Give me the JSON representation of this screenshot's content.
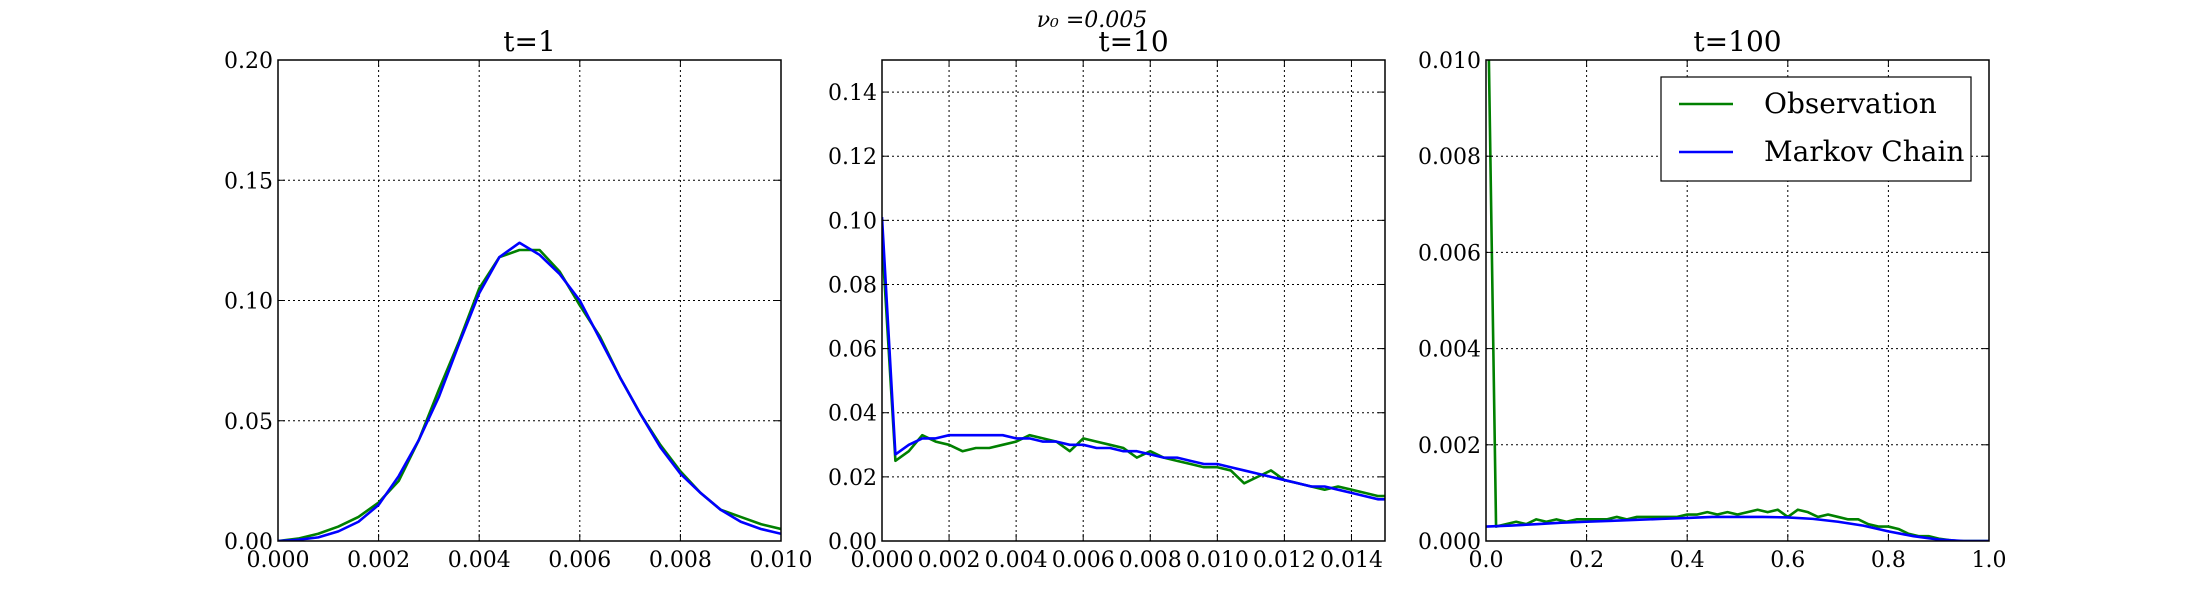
{
  "suptitle": "ν₀ =0.005",
  "legend": {
    "placement": "top-right",
    "entries": [
      {
        "label": "Observation",
        "color": "#008000"
      },
      {
        "label": "Markov Chain",
        "color": "#0000ff"
      }
    ]
  },
  "chart_data": [
    {
      "type": "line",
      "title": "t=1",
      "grid": true,
      "xlim": [
        0,
        0.01
      ],
      "ylim": [
        0,
        0.2
      ],
      "xticks": [
        "0.000",
        "0.002",
        "0.004",
        "0.006",
        "0.008",
        "0.010"
      ],
      "yticks": [
        "0.00",
        "0.05",
        "0.10",
        "0.15",
        "0.20"
      ],
      "xtick_values": [
        0,
        0.002,
        0.004,
        0.006,
        0.008,
        0.01
      ],
      "ytick_values": [
        0,
        0.05,
        0.1,
        0.15,
        0.2
      ],
      "series": [
        {
          "name": "Observation",
          "color": "#008000",
          "x": [
            0,
            0.0004,
            0.0008,
            0.0012,
            0.0016,
            0.002,
            0.0024,
            0.0028,
            0.0032,
            0.0036,
            0.004,
            0.0044,
            0.0048,
            0.0052,
            0.0056,
            0.006,
            0.0064,
            0.0068,
            0.0072,
            0.0076,
            0.008,
            0.0084,
            0.0088,
            0.0092,
            0.0096,
            0.01
          ],
          "y": [
            0,
            0.001,
            0.003,
            0.006,
            0.01,
            0.016,
            0.025,
            0.042,
            0.063,
            0.083,
            0.105,
            0.118,
            0.121,
            0.121,
            0.112,
            0.098,
            0.085,
            0.068,
            0.053,
            0.04,
            0.029,
            0.02,
            0.013,
            0.01,
            0.007,
            0.005
          ]
        },
        {
          "name": "Markov Chain",
          "color": "#0000ff",
          "x": [
            0,
            0.0004,
            0.0008,
            0.0012,
            0.0016,
            0.002,
            0.0024,
            0.0028,
            0.0032,
            0.0036,
            0.004,
            0.0044,
            0.0048,
            0.0052,
            0.0056,
            0.006,
            0.0064,
            0.0068,
            0.0072,
            0.0076,
            0.008,
            0.0084,
            0.0088,
            0.0092,
            0.0096,
            0.01
          ],
          "y": [
            0,
            0.0005,
            0.0015,
            0.004,
            0.008,
            0.015,
            0.027,
            0.042,
            0.06,
            0.082,
            0.103,
            0.118,
            0.124,
            0.119,
            0.111,
            0.1,
            0.084,
            0.068,
            0.053,
            0.039,
            0.028,
            0.02,
            0.013,
            0.008,
            0.005,
            0.003
          ]
        }
      ]
    },
    {
      "type": "line",
      "title": "t=10",
      "grid": true,
      "xlim": [
        0,
        0.015
      ],
      "ylim": [
        0,
        0.15
      ],
      "xticks": [
        "0.000",
        "0.002",
        "0.004",
        "0.006",
        "0.008",
        "0.010",
        "0.012",
        "0.014"
      ],
      "yticks": [
        "0.00",
        "0.02",
        "0.04",
        "0.06",
        "0.08",
        "0.10",
        "0.12",
        "0.14"
      ],
      "xtick_values": [
        0,
        0.002,
        0.004,
        0.006,
        0.008,
        0.01,
        0.012,
        0.014
      ],
      "ytick_values": [
        0,
        0.02,
        0.04,
        0.06,
        0.08,
        0.1,
        0.12,
        0.14
      ],
      "series": [
        {
          "name": "Observation",
          "color": "#008000",
          "x": [
            0,
            0.0004,
            0.0008,
            0.0012,
            0.0016,
            0.002,
            0.0024,
            0.0028,
            0.0032,
            0.0036,
            0.004,
            0.0044,
            0.0048,
            0.0052,
            0.0056,
            0.006,
            0.0064,
            0.0068,
            0.0072,
            0.0076,
            0.008,
            0.0084,
            0.0088,
            0.0092,
            0.0096,
            0.01,
            0.0104,
            0.0108,
            0.0112,
            0.0116,
            0.012,
            0.0124,
            0.0128,
            0.0132,
            0.0136,
            0.014,
            0.0144,
            0.0148,
            0.015
          ],
          "y": [
            0.094,
            0.025,
            0.028,
            0.033,
            0.031,
            0.03,
            0.028,
            0.029,
            0.029,
            0.03,
            0.031,
            0.033,
            0.032,
            0.031,
            0.028,
            0.032,
            0.031,
            0.03,
            0.029,
            0.026,
            0.028,
            0.026,
            0.025,
            0.024,
            0.023,
            0.023,
            0.022,
            0.018,
            0.02,
            0.022,
            0.019,
            0.018,
            0.017,
            0.016,
            0.017,
            0.016,
            0.015,
            0.014,
            0.014
          ]
        },
        {
          "name": "Markov Chain",
          "color": "#0000ff",
          "x": [
            0,
            0.0004,
            0.0008,
            0.0012,
            0.0016,
            0.002,
            0.0024,
            0.0028,
            0.0032,
            0.0036,
            0.004,
            0.0044,
            0.0048,
            0.0052,
            0.0056,
            0.006,
            0.0064,
            0.0068,
            0.0072,
            0.0076,
            0.008,
            0.0084,
            0.0088,
            0.0092,
            0.0096,
            0.01,
            0.0104,
            0.0108,
            0.0112,
            0.0116,
            0.012,
            0.0124,
            0.0128,
            0.0132,
            0.0136,
            0.014,
            0.0144,
            0.0148,
            0.015
          ],
          "y": [
            0.101,
            0.027,
            0.03,
            0.032,
            0.032,
            0.033,
            0.033,
            0.033,
            0.033,
            0.033,
            0.032,
            0.032,
            0.031,
            0.031,
            0.03,
            0.03,
            0.029,
            0.029,
            0.028,
            0.028,
            0.027,
            0.026,
            0.026,
            0.025,
            0.024,
            0.024,
            0.023,
            0.022,
            0.021,
            0.02,
            0.019,
            0.018,
            0.017,
            0.017,
            0.016,
            0.015,
            0.014,
            0.013,
            0.013
          ]
        }
      ]
    },
    {
      "type": "line",
      "title": "t=100",
      "grid": true,
      "xlim": [
        0,
        1.0
      ],
      "ylim": [
        0,
        0.01
      ],
      "xticks": [
        "0.0",
        "0.2",
        "0.4",
        "0.6",
        "0.8",
        "1.0"
      ],
      "yticks": [
        "0.000",
        "0.002",
        "0.004",
        "0.006",
        "0.008",
        "0.010"
      ],
      "xtick_values": [
        0,
        0.2,
        0.4,
        0.6,
        0.8,
        1.0
      ],
      "ytick_values": [
        0,
        0.002,
        0.004,
        0.006,
        0.008,
        0.01
      ],
      "series": [
        {
          "name": "Observation",
          "color": "#008000",
          "x": [
            0.005,
            0.02,
            0.04,
            0.06,
            0.08,
            0.1,
            0.12,
            0.14,
            0.16,
            0.18,
            0.2,
            0.22,
            0.24,
            0.26,
            0.28,
            0.3,
            0.32,
            0.34,
            0.36,
            0.38,
            0.4,
            0.42,
            0.44,
            0.46,
            0.48,
            0.5,
            0.52,
            0.54,
            0.56,
            0.58,
            0.6,
            0.62,
            0.64,
            0.66,
            0.68,
            0.7,
            0.72,
            0.74,
            0.76,
            0.78,
            0.8,
            0.82,
            0.84,
            0.86,
            0.88,
            0.9,
            0.92,
            0.94,
            0.96,
            0.98,
            1.0
          ],
          "y": [
            0.0105,
            0.0003,
            0.00035,
            0.0004,
            0.00035,
            0.00045,
            0.0004,
            0.00045,
            0.0004,
            0.00045,
            0.00045,
            0.00045,
            0.00045,
            0.0005,
            0.00045,
            0.0005,
            0.0005,
            0.0005,
            0.0005,
            0.0005,
            0.00055,
            0.00055,
            0.0006,
            0.00055,
            0.0006,
            0.00055,
            0.0006,
            0.00065,
            0.0006,
            0.00065,
            0.0005,
            0.00065,
            0.0006,
            0.0005,
            0.00055,
            0.0005,
            0.00045,
            0.00045,
            0.00035,
            0.0003,
            0.0003,
            0.00025,
            0.00015,
            0.0001,
            0.0001,
            5e-05,
            2e-05,
            0.0,
            0.0,
            0.0,
            0.0
          ]
        },
        {
          "name": "Markov Chain",
          "color": "#0000ff",
          "x": [
            0.0,
            0.05,
            0.1,
            0.15,
            0.2,
            0.25,
            0.3,
            0.35,
            0.4,
            0.45,
            0.5,
            0.55,
            0.6,
            0.65,
            0.7,
            0.75,
            0.8,
            0.85,
            0.9,
            0.95,
            1.0
          ],
          "y": [
            0.0003,
            0.00032,
            0.00035,
            0.00038,
            0.0004,
            0.00042,
            0.00044,
            0.00046,
            0.00048,
            0.0005,
            0.0005,
            0.0005,
            0.00049,
            0.00046,
            0.0004,
            0.00032,
            0.0002,
            0.0001,
            3e-05,
            0.0,
            0.0
          ]
        }
      ]
    }
  ]
}
